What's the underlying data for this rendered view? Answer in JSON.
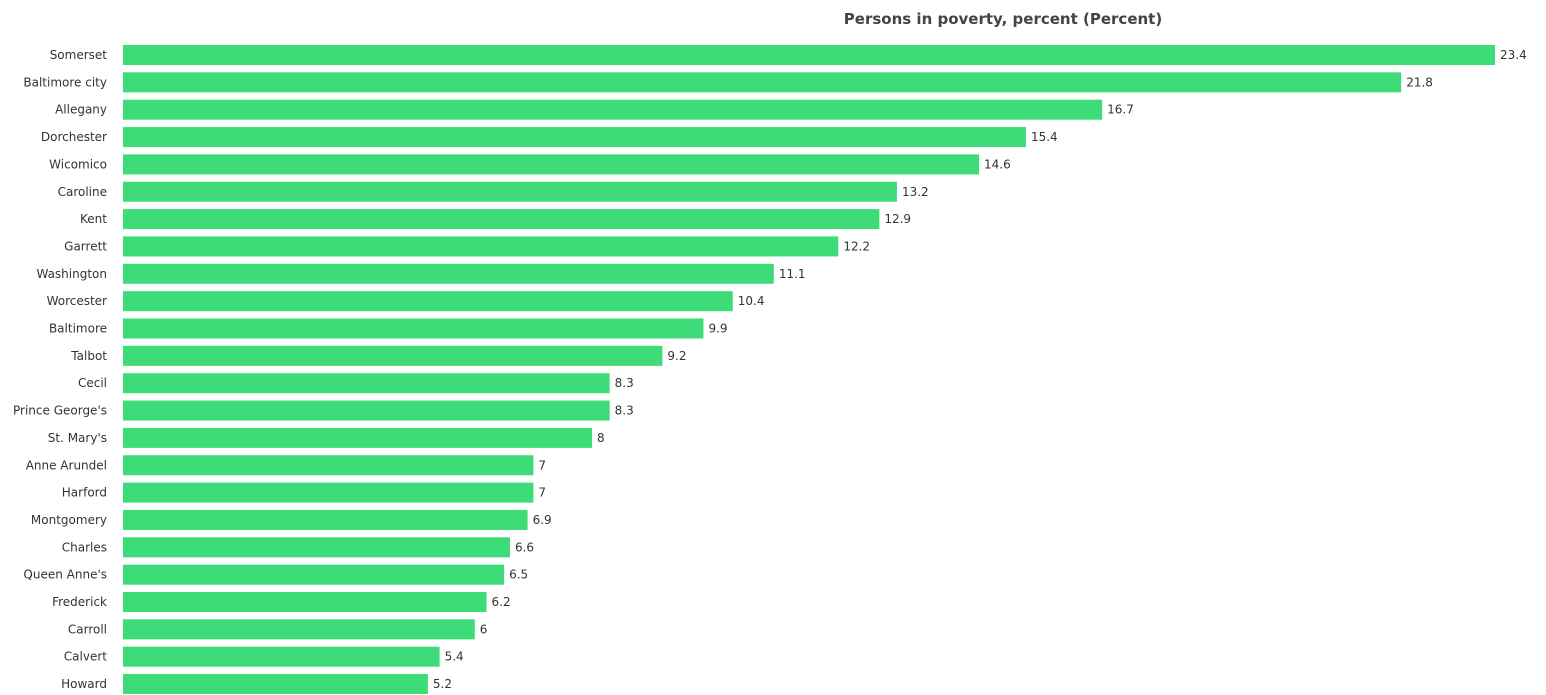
{
  "chart_data": {
    "type": "bar",
    "orientation": "horizontal",
    "title": "Persons in poverty, percent (Percent)",
    "xlabel": "",
    "ylabel": "",
    "grid": false,
    "legend": "none",
    "xlim": [
      0,
      23.4
    ],
    "bar_color": "#3ddc78",
    "categories": [
      "Somerset",
      "Baltimore city",
      "Allegany",
      "Dorchester",
      "Wicomico",
      "Caroline",
      "Kent",
      "Garrett",
      "Washington",
      "Worcester",
      "Baltimore",
      "Talbot",
      "Cecil",
      "Prince George's",
      "St. Mary's",
      "Anne Arundel",
      "Harford",
      "Montgomery",
      "Charles",
      "Queen Anne's",
      "Frederick",
      "Carroll",
      "Calvert",
      "Howard"
    ],
    "value_labels": [
      "23.4",
      "21.8",
      "16.7",
      "15.4",
      "14.6",
      "13.2",
      "12.9",
      "12.2",
      "11.1",
      "10.4",
      "9.9",
      "9.2",
      "8.3",
      "8.3",
      "8",
      "7",
      "7",
      "6.9",
      "6.6",
      "6.5",
      "6.2",
      "6",
      "5.4",
      "5.2"
    ],
    "values": [
      23.4,
      21.8,
      16.7,
      15.4,
      14.6,
      13.2,
      12.9,
      12.2,
      11.1,
      10.4,
      9.9,
      9.2,
      8.3,
      8.3,
      8,
      7,
      7,
      6.9,
      6.6,
      6.5,
      6.2,
      6,
      5.4,
      5.2
    ]
  }
}
